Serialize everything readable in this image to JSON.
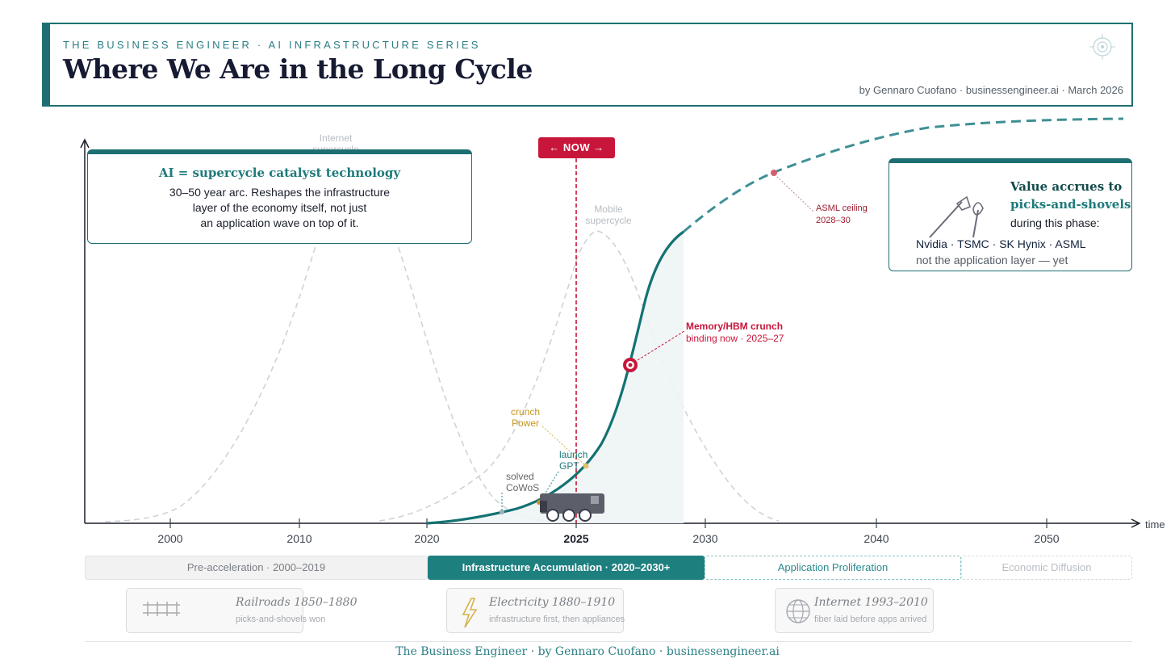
{
  "header": {
    "series": "THE BUSINESS ENGINEER · AI INFRASTRUCTURE SERIES",
    "title": "Where We Are in the Long Cycle",
    "byline": "by Gennaro Cuofano · businessengineer.ai · March 2026"
  },
  "callout_left": {
    "title": "AI = supercycle catalyst technology",
    "lines": [
      "30–50 year arc. Reshapes the infrastructure",
      "layer of the economy itself, not just",
      "an application wave on top of it."
    ]
  },
  "callout_right": {
    "title_line1": "Value accrues to",
    "title_line2": "picks-and-shovels",
    "subtitle": "during this phase:",
    "companies": "Nvidia · TSMC · SK Hynix · ASML",
    "note": "not the application layer — yet"
  },
  "now_badge": "← NOW →",
  "labels": {
    "internet_supercycle": [
      "Internet",
      "supercycle"
    ],
    "mobile_supercycle": [
      "Mobile",
      "supercycle"
    ],
    "asml_ceiling": [
      "ASML ceiling",
      "2028–30"
    ],
    "memory_crunch_title": "Memory/HBM crunch",
    "memory_crunch_sub": "binding now · 2025–27",
    "power_crunch": [
      "crunch",
      "Power"
    ],
    "gpt_launch": [
      "launch",
      "GPT"
    ],
    "cowos_solved": [
      "solved",
      "CoWoS"
    ]
  },
  "axis": {
    "ticks": [
      "2000",
      "2010",
      "2020",
      "2025",
      "2030",
      "2040",
      "2050"
    ],
    "time_label": "time"
  },
  "phases": {
    "pre": "Pre-acceleration · 2000–2019",
    "infra": "Infrastructure Accumulation · 2020–2030+",
    "app": "Application Proliferation",
    "econ": "Economic Diffusion"
  },
  "history": [
    {
      "title": "Railroads 1850–1880",
      "sub": "picks-and-shovels won"
    },
    {
      "title": "Electricity 1880–1910",
      "sub": "infrastructure first, then appliances"
    },
    {
      "title": "Internet 1993–2010",
      "sub": "fiber laid before apps arrived"
    }
  ],
  "footer": "The Business Engineer · by Gennaro Cuofano · businessengineer.ai",
  "colors": {
    "teal": "#1e6f72",
    "accent_red": "#c8163a",
    "gold": "#c4961e",
    "ghost": "#c8ccd0"
  }
}
